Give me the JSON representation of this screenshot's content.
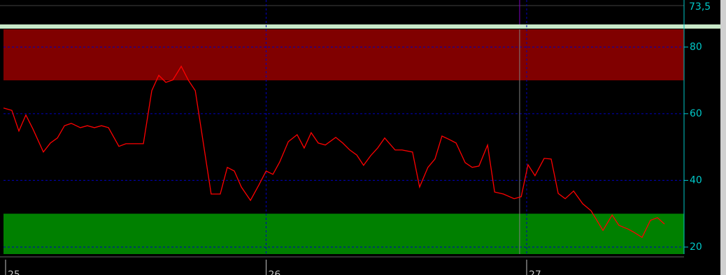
{
  "chart_data": {
    "type": "line",
    "top_label": "73,5",
    "x": [
      24.992,
      25.024,
      25.051,
      25.078,
      25.105,
      25.145,
      25.172,
      25.199,
      25.226,
      25.252,
      25.287,
      25.314,
      25.341,
      25.368,
      25.395,
      25.435,
      25.462,
      25.502,
      25.529,
      25.561,
      25.588,
      25.615,
      25.642,
      25.674,
      25.701,
      25.728,
      25.789,
      25.824,
      25.851,
      25.878,
      25.905,
      25.94,
      25.972,
      26.0,
      26.026,
      26.052,
      26.085,
      26.119,
      26.146,
      26.173,
      26.2,
      26.227,
      26.267,
      26.294,
      26.321,
      26.348,
      26.374,
      26.401,
      26.428,
      26.455,
      26.495,
      26.522,
      26.562,
      26.589,
      26.621,
      26.648,
      26.675,
      26.702,
      26.729,
      26.764,
      26.791,
      26.817,
      26.85,
      26.877,
      26.911,
      26.952,
      26.979,
      27.005,
      27.032,
      27.067,
      27.094,
      27.121,
      27.148,
      27.18,
      27.215,
      27.247,
      27.293,
      27.328,
      27.354,
      27.389,
      27.408,
      27.443,
      27.475,
      27.502,
      27.529
    ],
    "series": [
      {
        "color": "#ff0000",
        "values": [
          61.7,
          61.0,
          54.8,
          59.6,
          55.4,
          48.5,
          51.2,
          52.7,
          56.4,
          57.1,
          55.8,
          56.4,
          55.8,
          56.4,
          55.8,
          50.2,
          51.0,
          51.0,
          51.0,
          66.9,
          71.5,
          69.4,
          70.1,
          74.2,
          70.1,
          66.9,
          35.9,
          35.9,
          43.9,
          42.8,
          38.0,
          34.0,
          38.6,
          42.8,
          41.8,
          45.5,
          51.6,
          53.7,
          49.7,
          54.3,
          51.2,
          50.6,
          52.9,
          51.2,
          49.1,
          47.6,
          44.5,
          47.4,
          49.7,
          52.7,
          49.1,
          49.1,
          48.5,
          38.0,
          43.9,
          46.4,
          53.3,
          52.3,
          51.2,
          45.3,
          43.9,
          44.3,
          50.6,
          36.5,
          35.9,
          34.5,
          35.1,
          44.7,
          41.4,
          46.6,
          46.4,
          36.1,
          34.5,
          36.8,
          33.0,
          30.9,
          25.0,
          29.6,
          26.5,
          25.4,
          24.6,
          22.9,
          28.0,
          28.8,
          26.9
        ]
      }
    ],
    "xlim": [
      24.992,
      27.604
    ],
    "xticks": [
      25,
      26,
      27
    ],
    "ylim": [
      17.9,
      85.3
    ],
    "yticks": [
      20,
      40,
      60,
      80
    ],
    "grid": true,
    "upper_band": {
      "level": 70,
      "color": "#800000"
    },
    "lower_band": {
      "level": 30,
      "color": "#008000"
    },
    "cursor_x": 26.973
  }
}
